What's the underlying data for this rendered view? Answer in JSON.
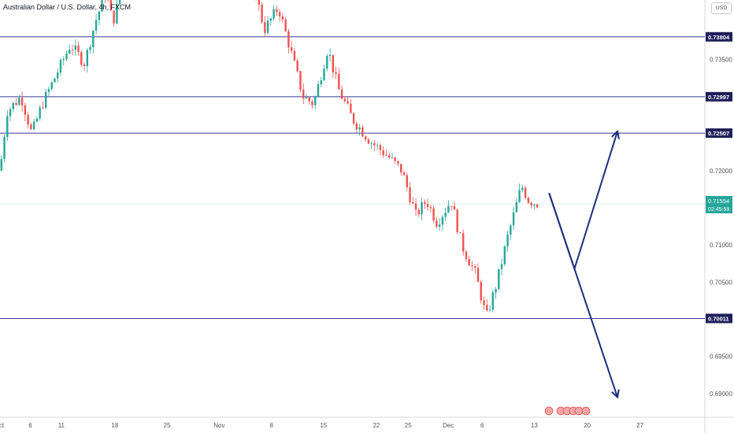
{
  "chart_data": {
    "type": "candlestick",
    "title": "Australian Dollar / U.S. Dollar, 4h, FXCM",
    "currency": "USD",
    "ylim": [
      0.6868,
      0.743
    ],
    "grid": false,
    "colors": {
      "up": "#26a69a",
      "down": "#ef5350",
      "level": "#3a3a9a",
      "arrow": "#1b2f7a",
      "current": "#26a69a"
    },
    "y_ticks": [
      "0.73500",
      "0.72000",
      "0.71000",
      "0.70500",
      "0.69500",
      "0.69000"
    ],
    "x_ticks": [
      {
        "label": "ct",
        "pos": 0.0
      },
      {
        "label": "6",
        "pos": 0.043
      },
      {
        "label": "11",
        "pos": 0.087
      },
      {
        "label": "18",
        "pos": 0.163
      },
      {
        "label": "25",
        "pos": 0.237
      },
      {
        "label": "Nov",
        "pos": 0.311
      },
      {
        "label": "8",
        "pos": 0.385
      },
      {
        "label": "15",
        "pos": 0.459
      },
      {
        "label": "22",
        "pos": 0.534
      },
      {
        "label": "25",
        "pos": 0.579
      },
      {
        "label": "Dec",
        "pos": 0.636
      },
      {
        "label": "6",
        "pos": 0.684
      },
      {
        "label": "13",
        "pos": 0.758
      },
      {
        "label": "20",
        "pos": 0.833
      },
      {
        "label": "27",
        "pos": 0.908
      }
    ],
    "levels": [
      {
        "value": 0.73804,
        "label": "0.73804"
      },
      {
        "value": 0.72997,
        "label": "0.72997"
      },
      {
        "value": 0.72507,
        "label": "0.72507"
      },
      {
        "value": 0.70011,
        "label": "0.70011"
      }
    ],
    "current_price": {
      "value": 0.71554,
      "label": "0.71554",
      "countdown": "02:45:59"
    },
    "path_anchors": [
      {
        "x": 0.0,
        "y": 0.72
      },
      {
        "x": 0.01,
        "y": 0.728
      },
      {
        "x": 0.03,
        "y": 0.73
      },
      {
        "x": 0.045,
        "y": 0.725
      },
      {
        "x": 0.06,
        "y": 0.729
      },
      {
        "x": 0.08,
        "y": 0.733
      },
      {
        "x": 0.1,
        "y": 0.737
      },
      {
        "x": 0.12,
        "y": 0.7345
      },
      {
        "x": 0.135,
        "y": 0.74
      },
      {
        "x": 0.15,
        "y": 0.744
      },
      {
        "x": 0.16,
        "y": 0.74
      },
      {
        "x": 0.175,
        "y": 0.745
      },
      {
        "x": 0.36,
        "y": 0.745
      },
      {
        "x": 0.375,
        "y": 0.739
      },
      {
        "x": 0.395,
        "y": 0.742
      },
      {
        "x": 0.41,
        "y": 0.737
      },
      {
        "x": 0.43,
        "y": 0.73
      },
      {
        "x": 0.445,
        "y": 0.729
      },
      {
        "x": 0.465,
        "y": 0.7365
      },
      {
        "x": 0.48,
        "y": 0.731
      },
      {
        "x": 0.5,
        "y": 0.727
      },
      {
        "x": 0.525,
        "y": 0.724
      },
      {
        "x": 0.55,
        "y": 0.722
      },
      {
        "x": 0.57,
        "y": 0.72
      },
      {
        "x": 0.59,
        "y": 0.714
      },
      {
        "x": 0.605,
        "y": 0.716
      },
      {
        "x": 0.62,
        "y": 0.713
      },
      {
        "x": 0.64,
        "y": 0.716
      },
      {
        "x": 0.655,
        "y": 0.71
      },
      {
        "x": 0.675,
        "y": 0.706
      },
      {
        "x": 0.69,
        "y": 0.7002
      },
      {
        "x": 0.705,
        "y": 0.705
      },
      {
        "x": 0.72,
        "y": 0.711
      },
      {
        "x": 0.74,
        "y": 0.718
      },
      {
        "x": 0.75,
        "y": 0.716
      },
      {
        "x": 0.765,
        "y": 0.7155
      }
    ],
    "scenario_arrows": [
      {
        "points": [
          [
            0.779,
            0.717
          ],
          [
            0.815,
            0.7068
          ],
          [
            0.876,
            0.7253
          ]
        ]
      },
      {
        "points": [
          [
            0.779,
            0.717
          ],
          [
            0.876,
            0.6895
          ]
        ]
      }
    ]
  }
}
